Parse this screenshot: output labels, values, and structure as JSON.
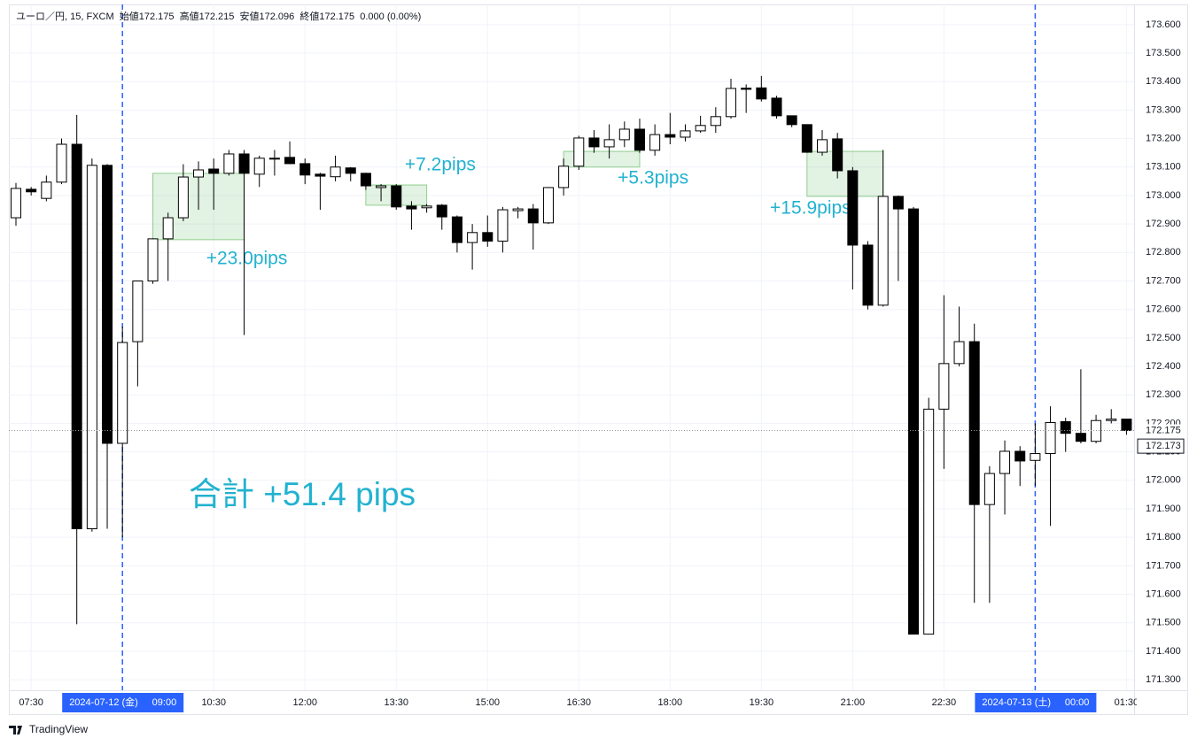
{
  "header": "ユーロ／円, 15, FXCM  始値172.175  高値172.215  安値172.096  終値172.175  0.000 (0.00%)",
  "footer": "TradingView",
  "chart_data": {
    "type": "candlestick",
    "categories": [
      null,
      "07:30",
      null,
      null,
      null,
      null,
      null,
      "09:00",
      null,
      null,
      null,
      null,
      null,
      "10:30",
      null,
      null,
      null,
      null,
      null,
      "12:00",
      null,
      null,
      null,
      null,
      null,
      "13:30",
      null,
      null,
      null,
      null,
      null,
      "15:00",
      null,
      null,
      null,
      null,
      null,
      "16:30",
      null,
      null,
      null,
      null,
      null,
      "18:00",
      null,
      null,
      null,
      null,
      null,
      "19:30",
      null,
      null,
      null,
      null,
      null,
      "21:00",
      null,
      null,
      null,
      null,
      null,
      "22:30",
      null,
      null,
      null,
      null,
      null,
      "00:00",
      null,
      null,
      null,
      null,
      null,
      "01:30"
    ],
    "open": [
      172.922,
      173.022,
      172.99,
      173.047,
      173.18,
      171.83,
      173.106,
      172.13,
      172.487,
      172.7,
      172.848,
      172.922,
      173.065,
      173.093,
      173.078,
      173.146,
      173.075,
      173.131,
      173.134,
      173.112,
      173.075,
      173.066,
      173.097,
      173.078,
      173.028,
      173.034,
      172.963,
      172.957,
      172.966,
      172.925,
      172.835,
      172.87,
      172.84,
      172.947,
      172.953,
      172.904,
      173.028,
      173.103,
      173.202,
      173.171,
      173.196,
      173.233,
      173.159,
      173.214,
      173.205,
      173.227,
      173.246,
      173.277,
      173.377,
      173.378,
      173.342,
      173.28,
      173.249,
      173.152,
      173.199,
      173.087,
      172.826,
      172.615,
      172.997,
      172.953,
      171.46,
      172.25,
      172.41,
      172.487,
      171.915,
      172.024,
      172.102,
      172.07,
      172.094,
      172.206,
      172.165,
      172.137,
      172.21,
      172.215
    ],
    "high": [
      173.044,
      173.03,
      173.07,
      173.2,
      173.283,
      173.13,
      173.11,
      172.54,
      172.7,
      172.85,
      172.94,
      173.11,
      173.12,
      173.13,
      173.16,
      173.16,
      173.14,
      173.16,
      173.19,
      173.13,
      173.08,
      173.14,
      173.1,
      173.08,
      173.04,
      173.04,
      172.98,
      172.97,
      172.97,
      172.93,
      172.9,
      172.93,
      172.96,
      172.96,
      172.97,
      173.03,
      173.13,
      173.21,
      173.23,
      173.25,
      173.26,
      173.27,
      173.25,
      173.29,
      173.25,
      173.28,
      173.31,
      173.41,
      173.39,
      173.42,
      173.35,
      173.28,
      173.25,
      173.23,
      173.22,
      173.1,
      172.84,
      173.16,
      173.0,
      172.96,
      172.29,
      172.65,
      172.61,
      172.55,
      172.05,
      172.14,
      172.12,
      172.2,
      172.26,
      172.22,
      172.39,
      172.23,
      172.25,
      172.215
    ],
    "low": [
      172.894,
      173.0,
      172.98,
      173.04,
      171.495,
      171.82,
      171.83,
      171.8,
      172.33,
      172.69,
      172.7,
      172.91,
      172.95,
      172.95,
      173.07,
      172.51,
      173.03,
      173.07,
      173.11,
      173.04,
      172.95,
      173.05,
      173.05,
      173.02,
      172.98,
      172.95,
      172.88,
      172.94,
      172.88,
      172.8,
      172.74,
      172.82,
      172.8,
      172.92,
      172.81,
      172.9,
      173.0,
      173.09,
      173.15,
      173.13,
      173.17,
      173.15,
      173.14,
      173.18,
      173.19,
      173.22,
      173.22,
      173.27,
      173.29,
      173.33,
      173.27,
      173.24,
      173.15,
      173.14,
      173.06,
      172.67,
      172.6,
      172.61,
      172.7,
      171.46,
      171.46,
      172.04,
      172.4,
      171.57,
      171.57,
      171.88,
      171.98,
      171.98,
      171.84,
      172.1,
      172.13,
      172.13,
      172.2,
      172.16
    ],
    "close": [
      173.025,
      173.013,
      173.047,
      173.18,
      171.83,
      173.106,
      172.13,
      172.484,
      172.7,
      172.848,
      172.922,
      173.065,
      173.09,
      173.078,
      173.146,
      173.078,
      173.131,
      173.128,
      173.112,
      173.072,
      173.068,
      173.1,
      173.078,
      173.034,
      173.034,
      172.96,
      172.953,
      172.963,
      172.925,
      172.835,
      172.87,
      172.84,
      172.95,
      172.953,
      172.904,
      173.028,
      173.103,
      173.202,
      173.171,
      173.196,
      173.233,
      173.159,
      173.214,
      173.205,
      173.227,
      173.246,
      173.277,
      173.376,
      173.373,
      173.339,
      173.28,
      173.249,
      173.152,
      173.196,
      173.087,
      172.826,
      172.615,
      172.997,
      172.953,
      171.46,
      172.25,
      172.41,
      172.487,
      171.915,
      172.024,
      172.102,
      172.068,
      172.094,
      172.203,
      172.165,
      172.137,
      172.21,
      172.215,
      172.175
    ],
    "up_color": "#ffffff",
    "down_color": "#000000",
    "grid": true,
    "ylim": [
      171.263,
      173.671
    ],
    "yticks": [
      {
        "value": 173.6,
        "label": "173.600"
      },
      {
        "value": 173.5,
        "label": "173.500"
      },
      {
        "value": 173.4,
        "label": "173.400"
      },
      {
        "value": 173.3,
        "label": "173.300"
      },
      {
        "value": 173.2,
        "label": "173.200"
      },
      {
        "value": 173.1,
        "label": "173.100"
      },
      {
        "value": 173.0,
        "label": "173.000"
      },
      {
        "value": 172.9,
        "label": "172.900"
      },
      {
        "value": 172.8,
        "label": "172.800"
      },
      {
        "value": 172.7,
        "label": "172.700"
      },
      {
        "value": 172.6,
        "label": "172.600"
      },
      {
        "value": 172.5,
        "label": "172.500"
      },
      {
        "value": 172.4,
        "label": "172.400"
      },
      {
        "value": 172.3,
        "label": "172.300"
      },
      {
        "value": 172.2,
        "label": "172.200"
      },
      {
        "value": 172.1,
        "label": "172.100"
      },
      {
        "value": 172.0,
        "label": "172.000"
      },
      {
        "value": 171.9,
        "label": "171.900"
      },
      {
        "value": 171.8,
        "label": "171.800"
      },
      {
        "value": 171.7,
        "label": "171.700"
      },
      {
        "value": 171.6,
        "label": "171.600"
      },
      {
        "value": 171.5,
        "label": "171.500"
      },
      {
        "value": 171.4,
        "label": "171.400"
      },
      {
        "value": 171.3,
        "label": "171.300"
      }
    ],
    "price_markers": [
      {
        "value": 172.175,
        "label": "172.175"
      },
      {
        "value": 172.173,
        "label": "172.173"
      }
    ],
    "date_labels": [
      {
        "text": "2024-07-12 (金)",
        "at": "09:00"
      },
      {
        "text": "2024-07-13 (土)",
        "at": "00:00"
      }
    ],
    "annotations": [
      {
        "label": "+23.0pips",
        "from": 9,
        "to": 15,
        "top": 173.078,
        "bottom": 172.845
      },
      {
        "label": "+7.2pips",
        "from": 23,
        "to": 27,
        "top": 173.037,
        "bottom": 172.966
      },
      {
        "label": "+5.3pips",
        "from": 36,
        "to": 41,
        "top": 173.155,
        "bottom": 173.1
      },
      {
        "label": "+15.9pips",
        "from": 52,
        "to": 57,
        "top": 173.155,
        "bottom": 172.997
      }
    ],
    "total_label": "合計 +51.4 pips"
  }
}
